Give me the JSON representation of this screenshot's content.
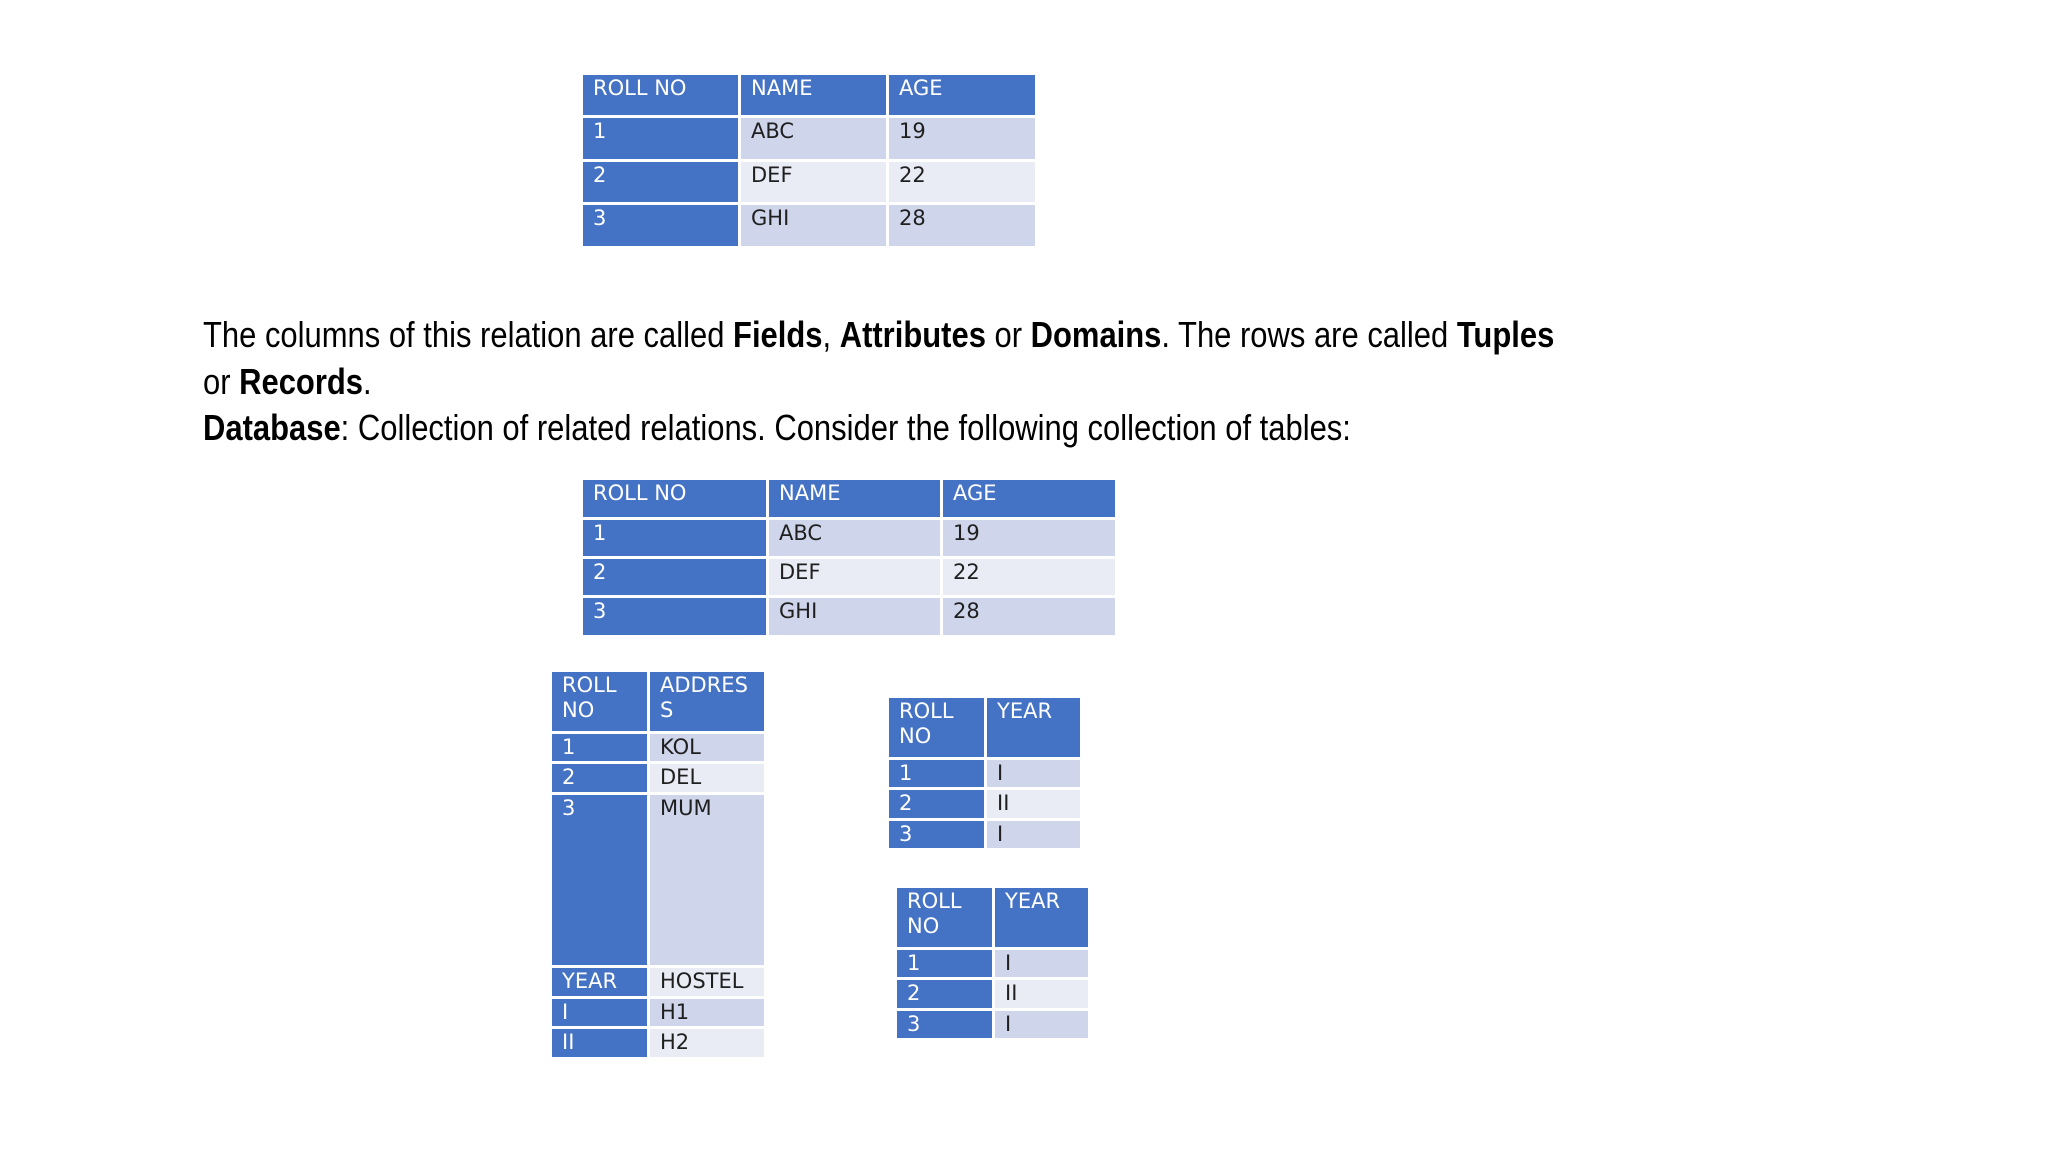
{
  "table1": {
    "headers": [
      "ROLL NO",
      "NAME",
      "AGE"
    ],
    "rows": [
      [
        "1",
        "ABC",
        "19"
      ],
      [
        "2",
        "DEF",
        "22"
      ],
      [
        "3",
        "GHI",
        "28"
      ]
    ]
  },
  "paragraph": {
    "line1": {
      "t1": "The columns of this relation are called ",
      "fields": "Fields",
      "t2": ", ",
      "attributes": "Attributes",
      "t3": " or ",
      "domains": "Domains",
      "t4": ". The rows are called ",
      "tuples": "Tuples"
    },
    "line2": {
      "t1": "or ",
      "records": "Records",
      "t2": "."
    },
    "line3": {
      "database": "Database",
      "t1": ": Collection of related relations. Consider the following collection of tables:"
    }
  },
  "table2": {
    "headers": [
      "ROLL NO",
      "NAME",
      "AGE"
    ],
    "rows": [
      [
        "1",
        "ABC",
        "19"
      ],
      [
        "2",
        "DEF",
        "22"
      ],
      [
        "3",
        "GHI",
        "28"
      ]
    ]
  },
  "table3": {
    "headers": [
      "ROLL NO",
      "ADDRES S"
    ],
    "rows": [
      [
        "1",
        "KOL"
      ],
      [
        "2",
        "DEL"
      ],
      [
        "3",
        "MUM"
      ]
    ],
    "subheaders": [
      "YEAR",
      "HOSTEL"
    ],
    "subrows": [
      [
        "I",
        "H1"
      ],
      [
        "II",
        "H2"
      ]
    ]
  },
  "table4": {
    "headers": [
      "ROLL NO",
      "YEAR"
    ],
    "rows": [
      [
        "1",
        "I"
      ],
      [
        "2",
        "II"
      ],
      [
        "3",
        "I"
      ]
    ]
  },
  "table5": {
    "headers": [
      "ROLL NO",
      "YEAR"
    ],
    "rows": [
      [
        "1",
        "I"
      ],
      [
        "2",
        "II"
      ],
      [
        "3",
        "I"
      ]
    ]
  }
}
